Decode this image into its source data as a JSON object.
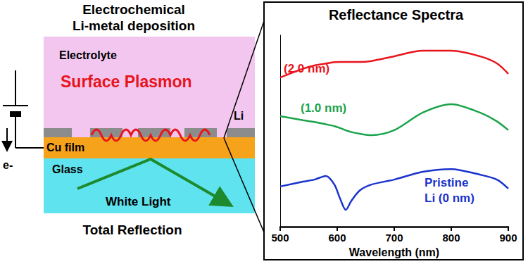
{
  "chart_data": {
    "type": "line",
    "title": "Reflectance Spectra",
    "x_label": "Wavelength (nm)",
    "x": [
      500,
      540,
      560,
      580,
      595,
      605,
      615,
      625,
      640,
      660,
      700,
      750,
      800,
      850,
      880,
      900
    ],
    "xlim": [
      500,
      900
    ],
    "xticks": [
      500,
      600,
      700,
      800,
      900
    ],
    "ylim": [
      0,
      100
    ],
    "tick_labels": "x",
    "grid": false,
    "series": [
      {
        "name": "(2.0 nm)",
        "color": "#e8141c",
        "values": [
          77.9,
          82.5,
          84.2,
          85.2,
          85.9,
          86,
          86,
          86,
          86,
          86.5,
          89,
          91.9,
          91.9,
          89,
          85.3,
          79.8
        ]
      },
      {
        "name": "(1.0 nm)",
        "color": "#1aa34a",
        "values": [
          57.7,
          55.6,
          54.7,
          53.5,
          52.5,
          51.5,
          50.3,
          49.4,
          48.5,
          47.8,
          50.4,
          59.6,
          64,
          59.6,
          55,
          50.4
        ]
      },
      {
        "name": "Pristine\nLi (0 nm)",
        "color": "#1a33cc",
        "values": [
          21,
          23.5,
          24.6,
          26.5,
          22,
          14.7,
          8.8,
          13.6,
          19,
          22,
          24.6,
          28.7,
          30.1,
          27.2,
          24.6,
          19.9
        ]
      }
    ]
  },
  "diagram": {
    "title": [
      "Electrochemical",
      "Li-metal deposition"
    ],
    "electrolyte": "Electrolyte",
    "plasmon": "Surface Plasmon",
    "li": "Li",
    "cu": "Cu film",
    "glass": "Glass",
    "light": "White Light",
    "electron": "e-",
    "caption": "Total Reflection"
  }
}
